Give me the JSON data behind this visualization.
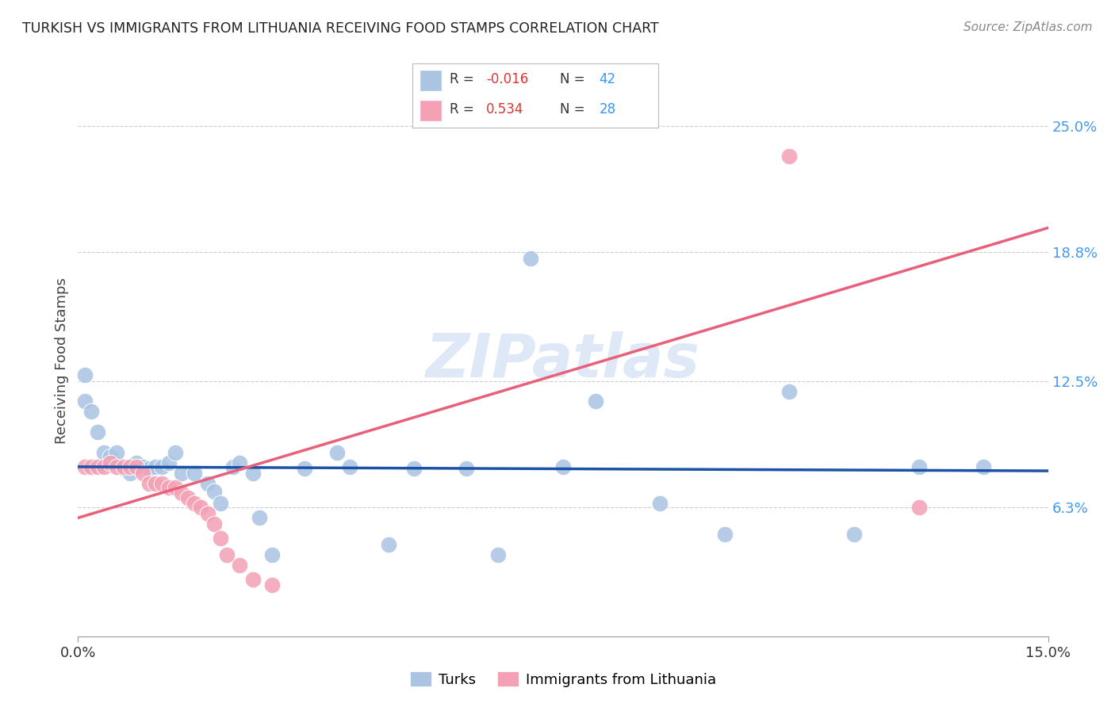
{
  "title": "TURKISH VS IMMIGRANTS FROM LITHUANIA RECEIVING FOOD STAMPS CORRELATION CHART",
  "source": "Source: ZipAtlas.com",
  "ylabel": "Receiving Food Stamps",
  "ytick_labels": [
    "6.3%",
    "12.5%",
    "18.8%",
    "25.0%"
  ],
  "ytick_values": [
    0.063,
    0.125,
    0.188,
    0.25
  ],
  "xmin": 0.0,
  "xmax": 0.15,
  "ymin": 0.0,
  "ymax": 0.27,
  "turks_R": "-0.016",
  "turks_N": "42",
  "lith_R": "0.534",
  "lith_N": "28",
  "turks_color": "#aac4e2",
  "lith_color": "#f4a0b5",
  "turks_line_color": "#1a52a8",
  "lith_line_color": "#e8607a",
  "turks_x": [
    0.001,
    0.001,
    0.002,
    0.003,
    0.004,
    0.005,
    0.006,
    0.007,
    0.008,
    0.009,
    0.01,
    0.011,
    0.012,
    0.013,
    0.014,
    0.015,
    0.016,
    0.018,
    0.02,
    0.021,
    0.022,
    0.024,
    0.025,
    0.027,
    0.028,
    0.03,
    0.035,
    0.04,
    0.042,
    0.048,
    0.052,
    0.06,
    0.065,
    0.07,
    0.075,
    0.08,
    0.09,
    0.1,
    0.11,
    0.12,
    0.13,
    0.14
  ],
  "turks_y": [
    0.128,
    0.115,
    0.11,
    0.1,
    0.09,
    0.088,
    0.09,
    0.082,
    0.08,
    0.085,
    0.083,
    0.082,
    0.083,
    0.083,
    0.085,
    0.09,
    0.08,
    0.08,
    0.075,
    0.071,
    0.065,
    0.083,
    0.085,
    0.08,
    0.058,
    0.04,
    0.082,
    0.09,
    0.083,
    0.045,
    0.082,
    0.082,
    0.04,
    0.185,
    0.083,
    0.115,
    0.065,
    0.05,
    0.12,
    0.05,
    0.083,
    0.083
  ],
  "lith_x": [
    0.001,
    0.002,
    0.003,
    0.004,
    0.005,
    0.006,
    0.007,
    0.008,
    0.009,
    0.01,
    0.011,
    0.012,
    0.013,
    0.014,
    0.015,
    0.016,
    0.017,
    0.018,
    0.019,
    0.02,
    0.021,
    0.022,
    0.023,
    0.025,
    0.027,
    0.03,
    0.11,
    0.13
  ],
  "lith_y": [
    0.083,
    0.083,
    0.083,
    0.083,
    0.085,
    0.083,
    0.083,
    0.083,
    0.083,
    0.08,
    0.075,
    0.075,
    0.075,
    0.073,
    0.073,
    0.07,
    0.068,
    0.065,
    0.063,
    0.06,
    0.055,
    0.048,
    0.04,
    0.035,
    0.028,
    0.025,
    0.235,
    0.063
  ],
  "turks_line_x0": 0.0,
  "turks_line_x1": 0.15,
  "turks_line_y0": 0.083,
  "turks_line_y1": 0.081,
  "lith_line_x0": 0.0,
  "lith_line_x1": 0.15,
  "lith_line_y0": 0.058,
  "lith_line_y1": 0.2,
  "grid_color": "#cccccc",
  "background_color": "#ffffff",
  "watermark": "ZIPatlas"
}
